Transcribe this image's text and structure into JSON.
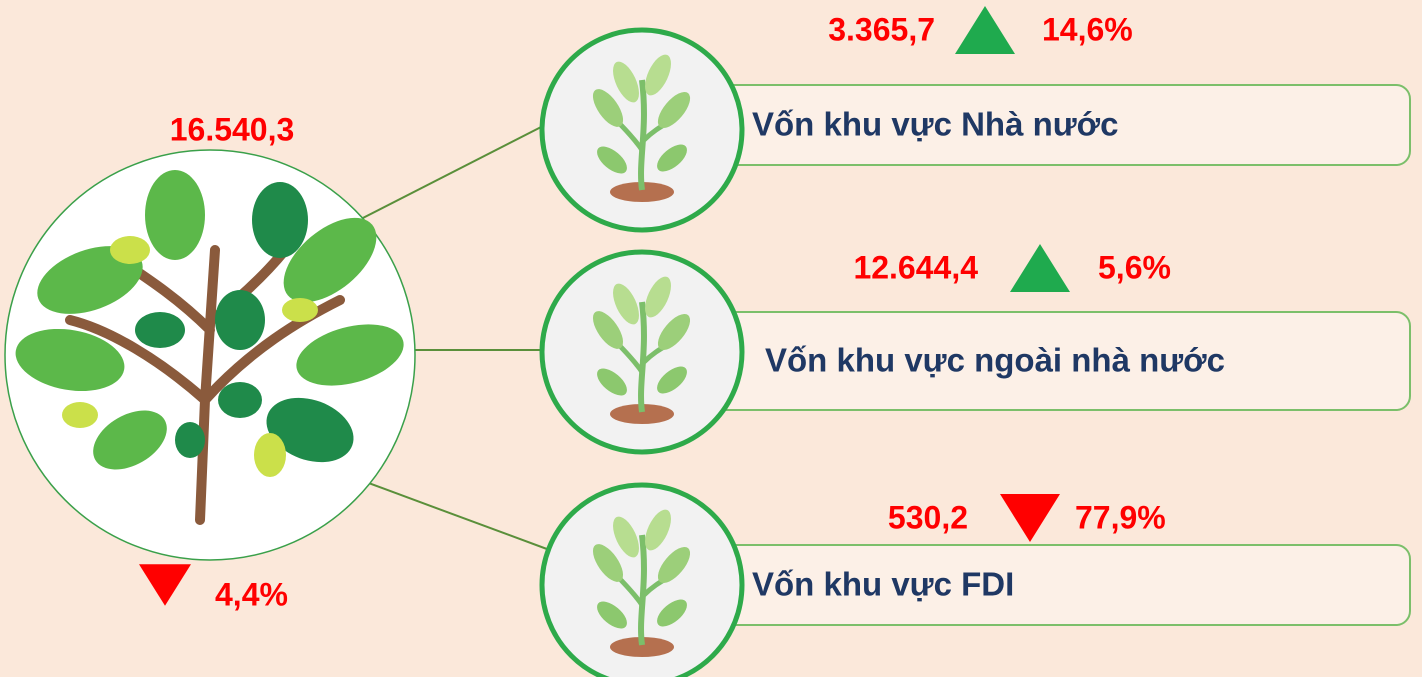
{
  "total": {
    "value": "16.540,3",
    "change": "4,4%",
    "direction": "down"
  },
  "items": [
    {
      "label": "Vốn khu vực Nhà nước",
      "value": "3.365,7",
      "change": "14,6%",
      "direction": "up"
    },
    {
      "label": "Vốn khu vực ngoài nhà nước",
      "value": "12.644,4",
      "change": "5,6%",
      "direction": "up"
    },
    {
      "label": "Vốn khu vực FDI",
      "value": "530,2",
      "change": "77,9%",
      "direction": "down"
    }
  ]
}
